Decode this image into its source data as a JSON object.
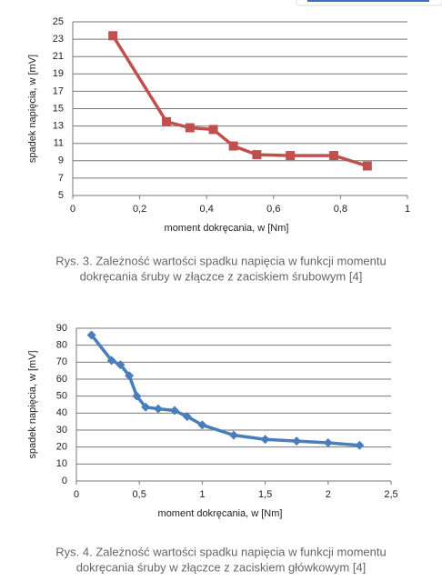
{
  "chart_data": [
    {
      "type": "line",
      "xlabel": "moment dokręcania, w [Nm]",
      "ylabel": "spadek napięcia, w [mV]",
      "x": [
        0.12,
        0.28,
        0.35,
        0.42,
        0.48,
        0.55,
        0.65,
        0.78,
        0.88
      ],
      "series": [
        {
          "name": null,
          "color": "#c0504d",
          "marker": "square",
          "values": [
            23.4,
            13.5,
            12.8,
            12.6,
            10.7,
            9.7,
            9.6,
            9.6,
            8.4
          ]
        }
      ],
      "xlim": [
        0,
        1
      ],
      "xticks": [
        0,
        {
          "value": 0.2,
          "label": "0,2"
        },
        {
          "value": 0.4,
          "label": "0,4"
        },
        {
          "value": 0.6,
          "label": "0,6"
        },
        {
          "value": 0.8,
          "label": "0,8"
        },
        1
      ],
      "ylim": [
        5,
        25
      ],
      "yticks": [
        5,
        7,
        9,
        11,
        13,
        15,
        17,
        19,
        21,
        23,
        25
      ],
      "grid": true,
      "caption": [
        "Rys. 3.  Zależność wartości spadku napięcia w funkcji momentu",
        "dokręcania śruby w złączce z zaciskiem śrubowym [4]"
      ]
    },
    {
      "type": "line",
      "xlabel": "moment dokręcania, w [Nm]",
      "ylabel": "spadek napięcia, w [mV]",
      "x": [
        0.12,
        0.28,
        0.35,
        0.42,
        0.48,
        0.55,
        0.65,
        0.78,
        0.88,
        1,
        1.25,
        1.5,
        1.75,
        2,
        2.25
      ],
      "series": [
        {
          "name": null,
          "color": "#4a7ebb",
          "marker": "diamond",
          "values": [
            86,
            71,
            68.5,
            62,
            50,
            43.5,
            42.5,
            41.5,
            38,
            33,
            27,
            24.5,
            23.5,
            22.5,
            21
          ]
        }
      ],
      "xlim": [
        0,
        2.5
      ],
      "xticks": [
        0,
        {
          "value": 0.5,
          "label": "0,5"
        },
        1,
        {
          "value": 1.5,
          "label": "1,5"
        },
        2,
        {
          "value": 2.5,
          "label": "2,5"
        }
      ],
      "ylim": [
        0,
        90
      ],
      "yticks": [
        0,
        10,
        20,
        30,
        40,
        50,
        60,
        70,
        80,
        90
      ],
      "grid": true,
      "caption": [
        "Rys. 4.  Zależność wartości spadku napięcia w funkcji momentu",
        "dokręcania śruby w złączce z zaciskiem główkowym [4]"
      ]
    }
  ]
}
